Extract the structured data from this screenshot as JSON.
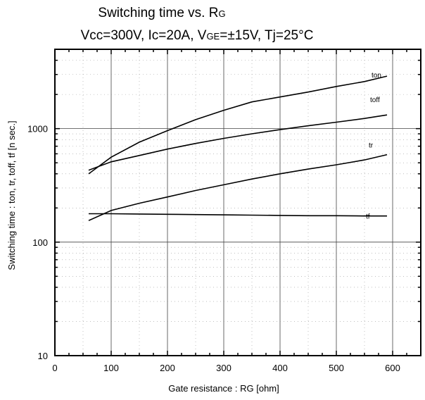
{
  "titles": {
    "line1_main": "Switching time  vs.  R",
    "line1_sub": "G",
    "line2_a": "Vcc=300V, Ic=20A, V",
    "line2_sub": "GE",
    "line2_b": "=±15V, Tj=25°C"
  },
  "chart_data": {
    "type": "line",
    "title": "Switching time  vs.  RG",
    "subtitle": "Vcc=300V, Ic=20A, VGE=±15V, Tj=25°C",
    "xlabel": "Gate resistance  :  RG [ohm]",
    "ylabel": "Switching time  :  ton, tr, toff, tf  [n sec.]",
    "xlim": [
      0,
      650
    ],
    "ylim": [
      10,
      5000
    ],
    "yscale": "log",
    "x_ticks": [
      "0",
      "100",
      "200",
      "300",
      "400",
      "500",
      "600"
    ],
    "y_ticks": [
      "10",
      "100",
      "1000"
    ],
    "grid": true,
    "series": [
      {
        "name": "ton",
        "x": [
          60,
          100,
          150,
          200,
          250,
          300,
          350,
          400,
          450,
          500,
          550,
          590
        ],
        "y": [
          400,
          560,
          760,
          960,
          1200,
          1450,
          1720,
          1900,
          2100,
          2350,
          2600,
          2900
        ]
      },
      {
        "name": "toff",
        "x": [
          60,
          100,
          150,
          200,
          250,
          300,
          350,
          400,
          450,
          500,
          550,
          590
        ],
        "y": [
          430,
          510,
          580,
          660,
          740,
          820,
          900,
          980,
          1060,
          1140,
          1230,
          1320
        ]
      },
      {
        "name": "tr",
        "x": [
          60,
          100,
          150,
          200,
          250,
          300,
          350,
          400,
          450,
          500,
          550,
          590
        ],
        "y": [
          155,
          190,
          220,
          250,
          285,
          320,
          360,
          400,
          440,
          480,
          530,
          590
        ]
      },
      {
        "name": "tf",
        "x": [
          60,
          100,
          150,
          200,
          250,
          300,
          350,
          400,
          450,
          500,
          550,
          590
        ],
        "y": [
          178,
          178,
          177,
          176,
          175,
          174,
          173,
          172,
          171,
          171,
          170,
          170
        ]
      }
    ]
  }
}
